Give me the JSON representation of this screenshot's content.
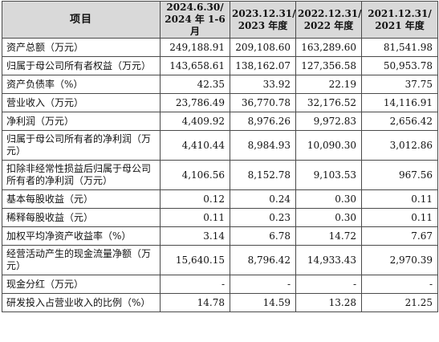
{
  "header": {
    "item": "项目",
    "periods": [
      [
        "2024.6.30/",
        "2024 年 1-6 月"
      ],
      [
        "2023.12.31/",
        "2023 年度"
      ],
      [
        "2022.12.31/",
        "2022 年度"
      ],
      [
        "2021.12.31/",
        "2021 年度"
      ]
    ]
  },
  "rows": [
    {
      "label": "资产总额（万元）",
      "values": [
        "249,188.91",
        "209,108.60",
        "163,289.60",
        "81,541.98"
      ]
    },
    {
      "label": "归属于母公司所有者权益（万元）",
      "values": [
        "143,658.61",
        "138,162.07",
        "127,356.58",
        "50,953.78"
      ]
    },
    {
      "label": "资产负债率（%）",
      "values": [
        "42.35",
        "33.92",
        "22.19",
        "37.75"
      ]
    },
    {
      "label": "营业收入（万元）",
      "values": [
        "23,786.49",
        "36,770.78",
        "32,176.52",
        "14,116.91"
      ]
    },
    {
      "label": "净利润（万元）",
      "values": [
        "4,409.92",
        "8,976.26",
        "9,972.83",
        "2,656.42"
      ]
    },
    {
      "label": "归属于母公司所有者的净利润（万元）",
      "values": [
        "4,410.44",
        "8,984.93",
        "10,090.30",
        "3,012.86"
      ]
    },
    {
      "label": "扣除非经常性损益后归属于母公司所有者的净利润（万元）",
      "values": [
        "4,106.56",
        "8,152.78",
        "9,103.53",
        "967.56"
      ]
    },
    {
      "label": "基本每股收益（元）",
      "values": [
        "0.12",
        "0.24",
        "0.30",
        "0.11"
      ]
    },
    {
      "label": "稀释每股收益（元）",
      "values": [
        "0.11",
        "0.23",
        "0.30",
        "0.11"
      ]
    },
    {
      "label": "加权平均净资产收益率（%）",
      "values": [
        "3.14",
        "6.78",
        "14.72",
        "7.67"
      ]
    },
    {
      "label": "经营活动产生的现金流量净额（万元）",
      "values": [
        "15,640.15",
        "8,796.42",
        "14,933.43",
        "2,970.39"
      ]
    },
    {
      "label": "现金分红（万元）",
      "values": [
        "-",
        "-",
        "-",
        "-"
      ]
    },
    {
      "label": "研发投入占营业收入的比例（%）",
      "values": [
        "14.78",
        "14.59",
        "13.28",
        "21.25"
      ]
    }
  ]
}
